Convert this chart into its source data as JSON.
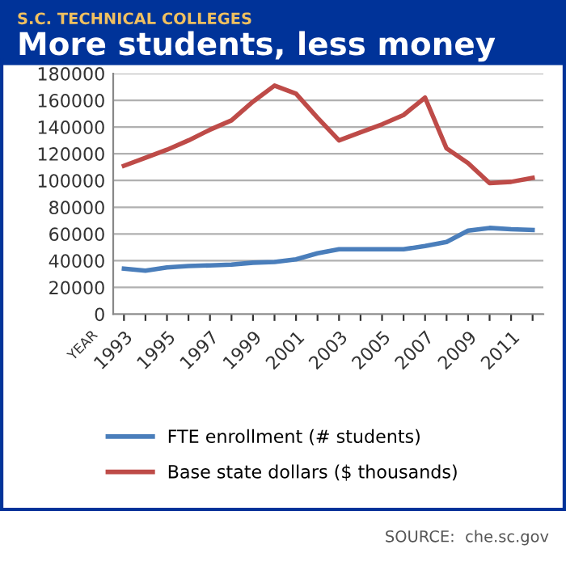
{
  "chart_data": {
    "type": "line",
    "subtitle": "S.C. TECHNICAL COLLEGES",
    "title": "More students, less money",
    "xlabel": "YEAR",
    "categories": [
      "1993",
      null,
      "1995",
      null,
      "1997",
      null,
      "1999",
      null,
      "2001",
      null,
      "2003",
      null,
      "2005",
      null,
      "2007",
      null,
      "2009",
      null,
      "2011",
      null
    ],
    "series": [
      {
        "name": "FTE enrollment (# students)",
        "color": "#4a7ebb",
        "values": [
          34000,
          32500,
          35000,
          36000,
          36500,
          37000,
          38500,
          39000,
          41000,
          45500,
          48500,
          48500,
          48500,
          48500,
          51000,
          54000,
          62500,
          64500,
          63500,
          63000
        ]
      },
      {
        "name": "Base state dollars ($ thousands)",
        "color": "#be4b48",
        "values": [
          111000,
          117000,
          123000,
          130000,
          138000,
          145000,
          159000,
          171000,
          165000,
          147000,
          130000,
          136000,
          142000,
          149000,
          162000,
          124000,
          113000,
          98000,
          99000,
          102000
        ]
      }
    ],
    "ylim": [
      0,
      180000
    ],
    "yticks": [
      0,
      20000,
      40000,
      60000,
      80000,
      100000,
      120000,
      140000,
      160000,
      180000
    ],
    "grid": "y",
    "legend": "bottom",
    "marker": "none",
    "line_style": "solid",
    "annotations": [
      "SOURCE:  che.sc.gov"
    ]
  }
}
